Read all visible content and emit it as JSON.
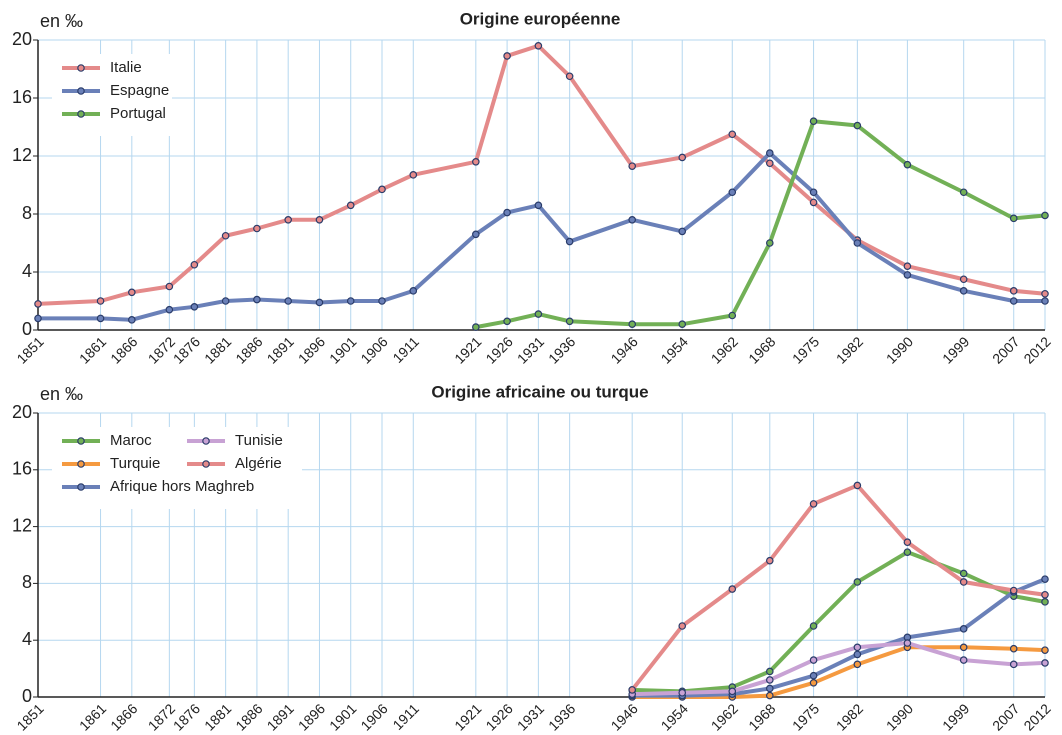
{
  "chart_data": [
    {
      "type": "line",
      "title": "Origine européenne",
      "y_label": "en ‰",
      "x": [
        1851,
        1861,
        1866,
        1872,
        1876,
        1881,
        1886,
        1891,
        1896,
        1901,
        1906,
        1911,
        1921,
        1926,
        1931,
        1936,
        1946,
        1954,
        1962,
        1968,
        1975,
        1982,
        1990,
        1999,
        2007,
        2012
      ],
      "series": [
        {
          "name": "Italie",
          "color": "#e48a8a",
          "values": [
            1.8,
            2.0,
            2.6,
            3.0,
            4.5,
            6.5,
            7.0,
            7.6,
            7.6,
            8.6,
            9.7,
            10.7,
            11.6,
            18.9,
            19.6,
            17.5,
            11.3,
            11.9,
            13.5,
            11.5,
            8.8,
            6.2,
            4.4,
            3.5,
            2.7,
            2.5
          ]
        },
        {
          "name": "Espagne",
          "color": "#6a80b8",
          "values": [
            0.8,
            0.8,
            0.7,
            1.4,
            1.6,
            2.0,
            2.1,
            2.0,
            1.9,
            2.0,
            2.0,
            2.7,
            6.6,
            8.1,
            8.6,
            6.1,
            7.6,
            6.8,
            9.5,
            12.2,
            9.5,
            6.0,
            3.8,
            2.7,
            2.0,
            2.0
          ]
        },
        {
          "name": "Portugal",
          "color": "#72b056",
          "values": [
            null,
            null,
            null,
            null,
            null,
            null,
            null,
            null,
            null,
            null,
            null,
            null,
            0.2,
            0.6,
            1.1,
            0.6,
            0.4,
            0.4,
            1.0,
            6.0,
            14.4,
            14.1,
            11.4,
            9.5,
            7.7,
            7.9
          ]
        }
      ],
      "xlim": [
        1851,
        2012
      ],
      "xticks": [
        1851,
        1861,
        1866,
        1872,
        1876,
        1881,
        1886,
        1891,
        1896,
        1901,
        1906,
        1911,
        1921,
        1926,
        1931,
        1936,
        1946,
        1954,
        1962,
        1968,
        1975,
        1982,
        1990,
        1999,
        2007,
        2012
      ],
      "ylim": [
        0,
        20
      ],
      "yticks": [
        0,
        4,
        8,
        12,
        16,
        20
      ],
      "grid": true,
      "legend": "upper left"
    },
    {
      "type": "line",
      "title": "Origine africaine ou turque",
      "y_label": "en ‰",
      "x": [
        1851,
        1861,
        1866,
        1872,
        1876,
        1881,
        1886,
        1891,
        1896,
        1901,
        1906,
        1911,
        1921,
        1926,
        1931,
        1936,
        1946,
        1954,
        1962,
        1968,
        1975,
        1982,
        1990,
        1999,
        2007,
        2012
      ],
      "series": [
        {
          "name": "Maroc",
          "color": "#72b056",
          "values": [
            null,
            null,
            null,
            null,
            null,
            null,
            null,
            null,
            null,
            null,
            null,
            null,
            null,
            null,
            null,
            null,
            0.5,
            0.4,
            0.7,
            1.8,
            5.0,
            8.1,
            10.2,
            8.7,
            7.1,
            6.7
          ]
        },
        {
          "name": "Turquie",
          "color": "#f59a40",
          "values": [
            null,
            null,
            null,
            null,
            null,
            null,
            null,
            null,
            null,
            null,
            null,
            null,
            null,
            null,
            null,
            null,
            0,
            0,
            0,
            0.1,
            1.0,
            2.3,
            3.5,
            3.5,
            3.4,
            3.3
          ]
        },
        {
          "name": "Afrique hors Maghreb",
          "color": "#6a80b8",
          "values": [
            null,
            null,
            null,
            null,
            null,
            null,
            null,
            null,
            null,
            null,
            null,
            null,
            null,
            null,
            null,
            null,
            0.1,
            0.1,
            0.2,
            0.6,
            1.5,
            3.0,
            4.2,
            4.8,
            7.4,
            8.3
          ]
        },
        {
          "name": "Tunisie",
          "color": "#c8a2d4",
          "values": [
            null,
            null,
            null,
            null,
            null,
            null,
            null,
            null,
            null,
            null,
            null,
            null,
            null,
            null,
            null,
            null,
            0.2,
            0.3,
            0.4,
            1.2,
            2.6,
            3.5,
            3.8,
            2.6,
            2.3,
            2.4
          ]
        },
        {
          "name": "Algérie",
          "color": "#e48a8a",
          "values": [
            null,
            null,
            null,
            null,
            null,
            null,
            null,
            null,
            null,
            null,
            null,
            null,
            null,
            null,
            null,
            null,
            0.5,
            5.0,
            7.6,
            9.6,
            13.6,
            14.9,
            10.9,
            8.1,
            7.5,
            7.2
          ]
        }
      ],
      "xlim": [
        1851,
        2012
      ],
      "xticks": [
        1851,
        1861,
        1866,
        1872,
        1876,
        1881,
        1886,
        1891,
        1896,
        1901,
        1906,
        1911,
        1921,
        1926,
        1931,
        1936,
        1946,
        1954,
        1962,
        1968,
        1975,
        1982,
        1990,
        1999,
        2007,
        2012
      ],
      "ylim": [
        0,
        20
      ],
      "yticks": [
        0,
        4,
        8,
        12,
        16,
        20
      ],
      "grid": true,
      "legend": "upper left"
    }
  ]
}
